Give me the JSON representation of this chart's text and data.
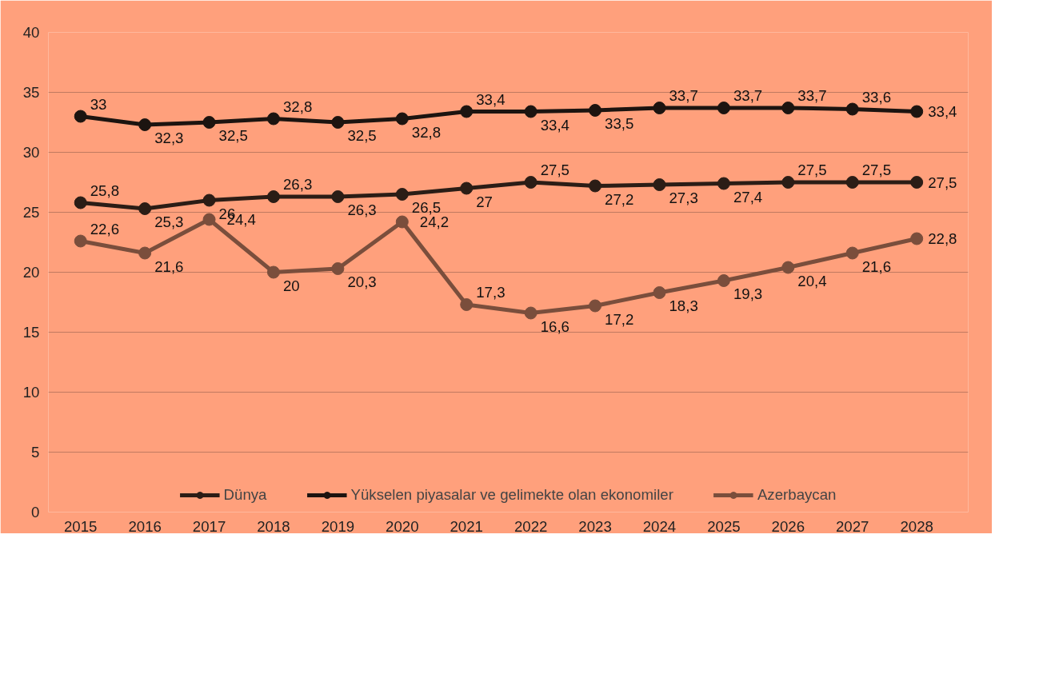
{
  "chart_data": {
    "type": "line",
    "categories": [
      "2015",
      "2016",
      "2017",
      "2018",
      "2019",
      "2020",
      "2021",
      "2022",
      "2023",
      "2024",
      "2025",
      "2026",
      "2027",
      "2028"
    ],
    "ylim": [
      0,
      40
    ],
    "yticks": [
      0,
      5,
      10,
      15,
      20,
      25,
      30,
      35,
      40
    ],
    "grid": "y",
    "legend": "bottom",
    "marker": "circle",
    "line_style": "solid",
    "series": [
      {
        "name": "Dünya",
        "color": "#2b1d16",
        "values": [
          25.8,
          25.3,
          26,
          26.3,
          26.3,
          26.5,
          27,
          27.5,
          27.2,
          27.3,
          27.4,
          27.5,
          27.5,
          27.5
        ],
        "value_labels": [
          "25,8",
          "25,3",
          "26",
          "26,3",
          "26,3",
          "26,5",
          "27",
          "27,5",
          "27,2",
          "27,3",
          "27,4",
          "27,5",
          "27,5",
          "27,5"
        ]
      },
      {
        "name": "Yükselen piyasalar ve gelimekte olan ekonomiler",
        "color": "#1c1410",
        "values": [
          33,
          32.3,
          32.5,
          32.8,
          32.5,
          32.8,
          33.4,
          33.4,
          33.5,
          33.7,
          33.7,
          33.7,
          33.6,
          33.4
        ],
        "value_labels": [
          "33",
          "32,3",
          "32,5",
          "32,8",
          "32,5",
          "32,8",
          "33,4",
          "33,4",
          "33,5",
          "33,7",
          "33,7",
          "33,7",
          "33,6",
          "33,4"
        ]
      },
      {
        "name": "Azerbaycan",
        "color": "#7a4e3c",
        "values": [
          22.6,
          21.6,
          24.4,
          20,
          20.3,
          24.2,
          17.3,
          16.6,
          17.2,
          18.3,
          19.3,
          20.4,
          21.6,
          22.8
        ],
        "value_labels": [
          "22,6",
          "21,6",
          "24,4",
          "20",
          "20,3",
          "24,2",
          "17,3",
          "16,6",
          "17,2",
          "18,3",
          "19,3",
          "20,4",
          "21,6",
          "22,8"
        ]
      }
    ]
  }
}
